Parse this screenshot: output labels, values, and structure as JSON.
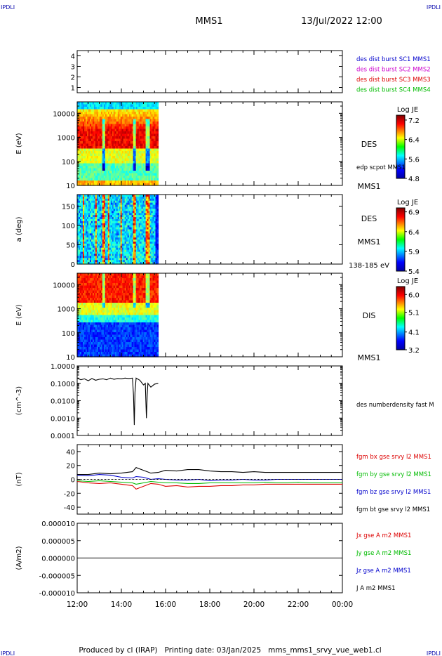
{
  "header": {
    "corner_tl": "IPDLI",
    "corner_tr": "IPDLI",
    "corner_bl": "IPDLI",
    "corner_br": "IPDLI",
    "title": "MMS1",
    "datetime": "13/Jul/2022 12:00"
  },
  "footer": {
    "text": "Produced by cl (IRAP)   Printing date: 03/Jan/2025   mms_mms1_srvy_vue_web1.cl"
  },
  "colors": {
    "blue": "#0000cc",
    "magenta": "#cc00cc",
    "red": "#dd0000",
    "green": "#00bb00",
    "black": "#000000"
  },
  "chart_data": [
    {
      "type": "line",
      "panel": "burst",
      "yticks": [
        "4",
        "3",
        "2",
        "1"
      ],
      "ylim": [
        0.5,
        4.5
      ],
      "legend": [
        {
          "label": "des dist burst SC1 MMS1",
          "color": "#0000cc"
        },
        {
          "label": "des dist burst SC2 MMS2",
          "color": "#cc00cc"
        },
        {
          "label": "des dist burst SC3 MMS3",
          "color": "#dd0000"
        },
        {
          "label": "des dist burst SC4 MMS4",
          "color": "#00bb00"
        }
      ]
    },
    {
      "type": "heatmap",
      "panel": "des-energy",
      "ylabel": "E (eV)",
      "yscale": "log",
      "ylim": [
        10,
        30000
      ],
      "yticks": [
        "10000",
        "1000",
        "100",
        "10"
      ],
      "data_end_time": "15:40",
      "colorbar": {
        "title": "Log JE",
        "ticks": [
          "7.2",
          "6.4",
          "5.6",
          "4.8"
        ],
        "range": [
          4.8,
          7.4
        ]
      },
      "labels": {
        "instrument": "DES",
        "sub": "edp scpot MMS1",
        "bottom": "MMS1"
      }
    },
    {
      "type": "heatmap",
      "panel": "des-pitch",
      "ylabel": "a (deg)",
      "ylim": [
        0,
        180
      ],
      "yticks": [
        "150",
        "100",
        "50",
        "0"
      ],
      "data_end_time": "15:40",
      "colorbar": {
        "title": "Log JE",
        "ticks": [
          "6.9",
          "6.4",
          "5.9",
          "5.4"
        ],
        "range": [
          5.4,
          7.0
        ]
      },
      "labels": {
        "instrument": "DES",
        "sub": "MMS1",
        "bottom": "138-185 eV"
      }
    },
    {
      "type": "heatmap",
      "panel": "dis-energy",
      "ylabel": "E (eV)",
      "yscale": "log",
      "ylim": [
        10,
        30000
      ],
      "yticks": [
        "10000",
        "1000",
        "100",
        "10"
      ],
      "data_end_time": "15:40",
      "colorbar": {
        "title": "Log JE",
        "ticks": [
          "6.0",
          "5.1",
          "4.1",
          "3.2"
        ],
        "range": [
          3.2,
          6.4
        ]
      },
      "labels": {
        "instrument": "DIS",
        "bottom": "MMS1"
      }
    },
    {
      "type": "line",
      "panel": "density",
      "ylabel": "(cm^-3)",
      "yscale": "log",
      "ylim": [
        0.0001,
        1.0
      ],
      "yticks": [
        "1.0000",
        "0.1000",
        "0.0100",
        "0.0010",
        "0.0001"
      ],
      "series": [
        {
          "name": "des numberdensity fast M",
          "color": "#000000",
          "x": [
            "12:00",
            "12:10",
            "12:20",
            "12:30",
            "12:40",
            "12:50",
            "13:00",
            "13:10",
            "13:20",
            "13:30",
            "13:40",
            "13:50",
            "14:00",
            "14:10",
            "14:20",
            "14:30",
            "14:33",
            "14:35",
            "14:37",
            "14:40",
            "14:50",
            "15:00",
            "15:05",
            "15:08",
            "15:10",
            "15:12",
            "15:20",
            "15:30",
            "15:40"
          ],
          "y": [
            0.2,
            0.16,
            0.18,
            0.14,
            0.19,
            0.15,
            0.17,
            0.18,
            0.16,
            0.2,
            0.17,
            0.19,
            0.18,
            0.2,
            0.19,
            0.2,
            0.02,
            0.0004,
            0.03,
            0.2,
            0.15,
            0.08,
            0.1,
            0.001,
            0.02,
            0.1,
            0.06,
            0.09,
            0.1
          ]
        }
      ]
    },
    {
      "type": "line",
      "panel": "magnetic-field",
      "ylabel": "(nT)",
      "ylim": [
        -50,
        50
      ],
      "yticks": [
        "40",
        "20",
        "0",
        "-20",
        "-40"
      ],
      "x": [
        "12:00",
        "12:30",
        "13:00",
        "13:30",
        "14:00",
        "14:30",
        "14:40",
        "15:00",
        "15:20",
        "15:40",
        "16:00",
        "16:30",
        "17:00",
        "17:30",
        "18:00",
        "18:30",
        "19:00",
        "19:30",
        "20:00",
        "20:30",
        "21:00",
        "21:30",
        "22:00",
        "22:30",
        "23:00",
        "23:30",
        "24:00"
      ],
      "series": [
        {
          "name": "fgm bx gse srvy l2 MMS1",
          "color": "#dd0000",
          "y": [
            -3,
            -5,
            -6,
            -5,
            -7,
            -9,
            -14,
            -10,
            -6,
            -7,
            -10,
            -9,
            -11,
            -10,
            -10,
            -9,
            -9,
            -8,
            -8,
            -7,
            -7,
            -7,
            -7,
            -7,
            -7,
            -7,
            -7
          ]
        },
        {
          "name": "fgm by gse srvy l2 MMS1",
          "color": "#00bb00",
          "y": [
            -2,
            -3,
            -2,
            -3,
            -4,
            -5,
            -7,
            -5,
            -3,
            -4,
            -5,
            -5,
            -6,
            -6,
            -5,
            -5,
            -5,
            -5,
            -5,
            -4,
            -5,
            -5,
            -4,
            -5,
            -5,
            -5,
            -5
          ]
        },
        {
          "name": "fgm bz gse srvy l2 MMS1",
          "color": "#0000cc",
          "y": [
            6,
            5,
            7,
            6,
            3,
            2,
            4,
            3,
            0,
            1,
            0,
            -1,
            -1,
            0,
            -2,
            -1,
            -1,
            0,
            -1,
            -1,
            0,
            0,
            0,
            0,
            0,
            0,
            0
          ]
        },
        {
          "name": "fgm bt gse srvy l2 MMS1",
          "color": "#000000",
          "y": [
            7,
            7,
            9,
            8,
            9,
            11,
            17,
            13,
            9,
            10,
            13,
            12,
            14,
            14,
            12,
            11,
            11,
            10,
            11,
            10,
            10,
            10,
            10,
            10,
            10,
            10,
            10
          ]
        }
      ]
    },
    {
      "type": "line",
      "panel": "current",
      "ylabel": "(A/m2)",
      "ylim": [
        -1e-05,
        1e-05
      ],
      "yticks": [
        "0.000010",
        "0.000005",
        "0.000000",
        "-0.000005",
        "-0.000010"
      ],
      "xticks": [
        "12:00",
        "14:00",
        "16:00",
        "18:00",
        "20:00",
        "22:00",
        "00:00"
      ],
      "x": [
        "12:00",
        "13:00",
        "14:00",
        "15:00",
        "15:40"
      ],
      "series": [
        {
          "name": "Jx gse A m2 MMS1",
          "color": "#dd0000",
          "y": [
            0,
            0,
            0,
            0,
            0
          ]
        },
        {
          "name": "Jy gse A m2 MMS1",
          "color": "#00bb00",
          "y": [
            0,
            0,
            0,
            0,
            0
          ]
        },
        {
          "name": "Jz gse A m2 MMS1",
          "color": "#0000cc",
          "y": [
            0,
            0,
            0,
            0,
            0
          ]
        },
        {
          "name": "J A m2 MMS1",
          "color": "#000000",
          "y": [
            0,
            0,
            0,
            0,
            0
          ]
        }
      ]
    }
  ]
}
